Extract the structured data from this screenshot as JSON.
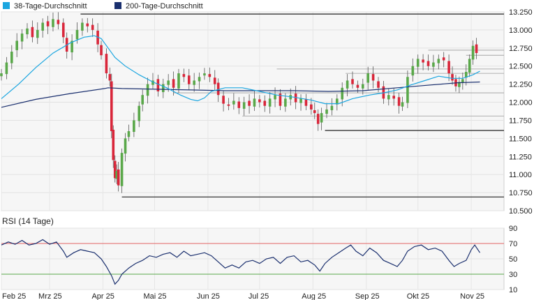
{
  "chart_data": [
    {
      "type": "candlestick",
      "legend": [
        {
          "label": "38-Tage-Durchschnitt",
          "color": "#1ba6e0"
        },
        {
          "label": "200-Tage-Durchschnitt",
          "color": "#1a2f6e"
        }
      ],
      "colors": {
        "up": "#5aa84a",
        "down": "#d9263a",
        "wick": "#555555",
        "ma38": "#1ba6e0",
        "ma200": "#1a2f6e",
        "level": "#222222"
      },
      "ylim": [
        10.5,
        13.25
      ],
      "yticks": [
        "13.250",
        "13.000",
        "12.750",
        "12.500",
        "12.250",
        "12.000",
        "11.750",
        "11.500",
        "11.250",
        "11.000",
        "10.750",
        "10.500"
      ],
      "months": [
        "Feb 25",
        "Mrz 25",
        "Apr 25",
        "Mai 25",
        "Jun 25",
        "Jul 25",
        "Aug 25",
        "Sep 25",
        "Okt 25",
        "Nov 25"
      ],
      "month_days": [
        0,
        28,
        59,
        89,
        120,
        150,
        181,
        212,
        242,
        273
      ],
      "day_range": [
        0,
        292
      ],
      "levels": [
        {
          "value": 13.22,
          "from_day": 46,
          "to_day": 292
        },
        {
          "value": 12.72,
          "from_day": 248,
          "to_day": 292
        },
        {
          "value": 12.65,
          "from_day": 270,
          "to_day": 292
        },
        {
          "value": 12.46,
          "from_day": 160,
          "to_day": 292
        },
        {
          "value": 12.4,
          "from_day": 200,
          "to_day": 292
        },
        {
          "value": 12.13,
          "from_day": 100,
          "to_day": 292
        },
        {
          "value": 11.81,
          "from_day": 140,
          "to_day": 292
        },
        {
          "value": 11.61,
          "from_day": 188,
          "to_day": 292
        },
        {
          "value": 10.69,
          "from_day": 70,
          "to_day": 292
        }
      ],
      "closes": [
        {
          "d": 0,
          "c": 12.4
        },
        {
          "d": 3,
          "c": 12.55
        },
        {
          "d": 6,
          "c": 12.7
        },
        {
          "d": 9,
          "c": 12.85
        },
        {
          "d": 12,
          "c": 12.95
        },
        {
          "d": 15,
          "c": 13.02
        },
        {
          "d": 18,
          "c": 12.9
        },
        {
          "d": 21,
          "c": 13.0
        },
        {
          "d": 24,
          "c": 13.1
        },
        {
          "d": 27,
          "c": 13.05
        },
        {
          "d": 30,
          "c": 13.15
        },
        {
          "d": 33,
          "c": 13.08
        },
        {
          "d": 36,
          "c": 12.9
        },
        {
          "d": 38,
          "c": 12.7
        },
        {
          "d": 41,
          "c": 12.85
        },
        {
          "d": 44,
          "c": 13.0
        },
        {
          "d": 47,
          "c": 13.1
        },
        {
          "d": 50,
          "c": 13.05
        },
        {
          "d": 53,
          "c": 13.0
        },
        {
          "d": 56,
          "c": 12.8
        },
        {
          "d": 58,
          "c": 12.65
        },
        {
          "d": 61,
          "c": 12.4
        },
        {
          "d": 63,
          "c": 12.3
        },
        {
          "d": 64,
          "c": 11.6
        },
        {
          "d": 65,
          "c": 11.2
        },
        {
          "d": 66,
          "c": 10.95
        },
        {
          "d": 67,
          "c": 11.05
        },
        {
          "d": 68,
          "c": 10.85
        },
        {
          "d": 70,
          "c": 11.3
        },
        {
          "d": 72,
          "c": 11.5
        },
        {
          "d": 74,
          "c": 11.6
        },
        {
          "d": 77,
          "c": 11.75
        },
        {
          "d": 80,
          "c": 11.95
        },
        {
          "d": 82,
          "c": 12.1
        },
        {
          "d": 85,
          "c": 12.25
        },
        {
          "d": 88,
          "c": 12.3
        },
        {
          "d": 91,
          "c": 12.15
        },
        {
          "d": 94,
          "c": 12.25
        },
        {
          "d": 97,
          "c": 12.3
        },
        {
          "d": 100,
          "c": 12.2
        },
        {
          "d": 103,
          "c": 12.4
        },
        {
          "d": 106,
          "c": 12.35
        },
        {
          "d": 109,
          "c": 12.25
        },
        {
          "d": 112,
          "c": 12.3
        },
        {
          "d": 115,
          "c": 12.35
        },
        {
          "d": 118,
          "c": 12.4
        },
        {
          "d": 121,
          "c": 12.35
        },
        {
          "d": 124,
          "c": 12.25
        },
        {
          "d": 126,
          "c": 12.1
        },
        {
          "d": 129,
          "c": 11.98
        },
        {
          "d": 132,
          "c": 11.95
        },
        {
          "d": 135,
          "c": 12.02
        },
        {
          "d": 138,
          "c": 11.92
        },
        {
          "d": 141,
          "c": 12.0
        },
        {
          "d": 144,
          "c": 11.95
        },
        {
          "d": 147,
          "c": 12.05
        },
        {
          "d": 150,
          "c": 12.0
        },
        {
          "d": 153,
          "c": 11.95
        },
        {
          "d": 156,
          "c": 12.05
        },
        {
          "d": 159,
          "c": 12.1
        },
        {
          "d": 162,
          "c": 11.95
        },
        {
          "d": 165,
          "c": 12.05
        },
        {
          "d": 168,
          "c": 12.1
        },
        {
          "d": 171,
          "c": 12.0
        },
        {
          "d": 174,
          "c": 12.05
        },
        {
          "d": 177,
          "c": 11.95
        },
        {
          "d": 180,
          "c": 11.9
        },
        {
          "d": 182,
          "c": 11.85
        },
        {
          "d": 184,
          "c": 11.7
        },
        {
          "d": 186,
          "c": 11.85
        },
        {
          "d": 189,
          "c": 11.9
        },
        {
          "d": 192,
          "c": 11.95
        },
        {
          "d": 195,
          "c": 12.05
        },
        {
          "d": 198,
          "c": 12.2
        },
        {
          "d": 201,
          "c": 12.3
        },
        {
          "d": 204,
          "c": 12.25
        },
        {
          "d": 207,
          "c": 12.2
        },
        {
          "d": 210,
          "c": 12.25
        },
        {
          "d": 213,
          "c": 12.4
        },
        {
          "d": 216,
          "c": 12.3
        },
        {
          "d": 219,
          "c": 12.2
        },
        {
          "d": 222,
          "c": 12.05
        },
        {
          "d": 225,
          "c": 12.1
        },
        {
          "d": 228,
          "c": 12.05
        },
        {
          "d": 231,
          "c": 11.95
        },
        {
          "d": 233,
          "c": 12.0
        },
        {
          "d": 236,
          "c": 12.35
        },
        {
          "d": 239,
          "c": 12.5
        },
        {
          "d": 242,
          "c": 12.6
        },
        {
          "d": 245,
          "c": 12.55
        },
        {
          "d": 248,
          "c": 12.5
        },
        {
          "d": 251,
          "c": 12.55
        },
        {
          "d": 254,
          "c": 12.6
        },
        {
          "d": 257,
          "c": 12.58
        },
        {
          "d": 260,
          "c": 12.4
        },
        {
          "d": 262,
          "c": 12.3
        },
        {
          "d": 264,
          "c": 12.22
        },
        {
          "d": 266,
          "c": 12.28
        },
        {
          "d": 268,
          "c": 12.32
        },
        {
          "d": 270,
          "c": 12.42
        },
        {
          "d": 272,
          "c": 12.6
        },
        {
          "d": 274,
          "c": 12.78
        },
        {
          "d": 276,
          "c": 12.68
        }
      ],
      "ma38": [
        {
          "d": 0,
          "v": 12.05
        },
        {
          "d": 10,
          "v": 12.25
        },
        {
          "d": 20,
          "v": 12.48
        },
        {
          "d": 30,
          "v": 12.68
        },
        {
          "d": 40,
          "v": 12.82
        },
        {
          "d": 48,
          "v": 12.9
        },
        {
          "d": 54,
          "v": 12.92
        },
        {
          "d": 58,
          "v": 12.88
        },
        {
          "d": 62,
          "v": 12.75
        },
        {
          "d": 66,
          "v": 12.62
        },
        {
          "d": 72,
          "v": 12.5
        },
        {
          "d": 80,
          "v": 12.38
        },
        {
          "d": 88,
          "v": 12.28
        },
        {
          "d": 96,
          "v": 12.2
        },
        {
          "d": 104,
          "v": 12.1
        },
        {
          "d": 110,
          "v": 12.04
        },
        {
          "d": 114,
          "v": 12.02
        },
        {
          "d": 118,
          "v": 12.06
        },
        {
          "d": 122,
          "v": 12.15
        },
        {
          "d": 130,
          "v": 12.2
        },
        {
          "d": 140,
          "v": 12.2
        },
        {
          "d": 150,
          "v": 12.15
        },
        {
          "d": 160,
          "v": 12.1
        },
        {
          "d": 170,
          "v": 12.07
        },
        {
          "d": 180,
          "v": 12.03
        },
        {
          "d": 188,
          "v": 11.98
        },
        {
          "d": 196,
          "v": 11.98
        },
        {
          "d": 204,
          "v": 12.05
        },
        {
          "d": 214,
          "v": 12.1
        },
        {
          "d": 222,
          "v": 12.13
        },
        {
          "d": 230,
          "v": 12.17
        },
        {
          "d": 238,
          "v": 12.24
        },
        {
          "d": 246,
          "v": 12.3
        },
        {
          "d": 254,
          "v": 12.36
        },
        {
          "d": 262,
          "v": 12.33
        },
        {
          "d": 268,
          "v": 12.33
        },
        {
          "d": 274,
          "v": 12.38
        },
        {
          "d": 278,
          "v": 12.43
        }
      ],
      "ma200": [
        {
          "d": 0,
          "v": 11.93
        },
        {
          "d": 20,
          "v": 12.04
        },
        {
          "d": 40,
          "v": 12.12
        },
        {
          "d": 60,
          "v": 12.19
        },
        {
          "d": 62,
          "v": 12.2
        },
        {
          "d": 70,
          "v": 12.19
        },
        {
          "d": 90,
          "v": 12.18
        },
        {
          "d": 110,
          "v": 12.17
        },
        {
          "d": 130,
          "v": 12.16
        },
        {
          "d": 150,
          "v": 12.16
        },
        {
          "d": 170,
          "v": 12.16
        },
        {
          "d": 190,
          "v": 12.15
        },
        {
          "d": 210,
          "v": 12.16
        },
        {
          "d": 230,
          "v": 12.2
        },
        {
          "d": 250,
          "v": 12.24
        },
        {
          "d": 265,
          "v": 12.27
        },
        {
          "d": 278,
          "v": 12.28
        }
      ]
    },
    {
      "type": "line",
      "title": "RSI (14 Tage)",
      "ylim": [
        10,
        90
      ],
      "yticks": [
        "90",
        "70",
        "50",
        "30",
        "10"
      ],
      "bands": [
        {
          "value": 70,
          "color": "#e36464"
        },
        {
          "value": 30,
          "color": "#5aa84a"
        }
      ],
      "line_color": "#1a2f6e",
      "points": [
        {
          "d": 0,
          "v": 68
        },
        {
          "d": 4,
          "v": 72
        },
        {
          "d": 8,
          "v": 69
        },
        {
          "d": 12,
          "v": 74
        },
        {
          "d": 16,
          "v": 68
        },
        {
          "d": 20,
          "v": 70
        },
        {
          "d": 24,
          "v": 75
        },
        {
          "d": 28,
          "v": 69
        },
        {
          "d": 32,
          "v": 72
        },
        {
          "d": 36,
          "v": 60
        },
        {
          "d": 38,
          "v": 52
        },
        {
          "d": 42,
          "v": 58
        },
        {
          "d": 46,
          "v": 62
        },
        {
          "d": 50,
          "v": 60
        },
        {
          "d": 54,
          "v": 58
        },
        {
          "d": 58,
          "v": 50
        },
        {
          "d": 61,
          "v": 40
        },
        {
          "d": 64,
          "v": 28
        },
        {
          "d": 66,
          "v": 17
        },
        {
          "d": 68,
          "v": 22
        },
        {
          "d": 70,
          "v": 30
        },
        {
          "d": 74,
          "v": 38
        },
        {
          "d": 78,
          "v": 44
        },
        {
          "d": 82,
          "v": 48
        },
        {
          "d": 86,
          "v": 54
        },
        {
          "d": 90,
          "v": 52
        },
        {
          "d": 94,
          "v": 56
        },
        {
          "d": 98,
          "v": 58
        },
        {
          "d": 102,
          "v": 52
        },
        {
          "d": 106,
          "v": 60
        },
        {
          "d": 110,
          "v": 54
        },
        {
          "d": 114,
          "v": 56
        },
        {
          "d": 118,
          "v": 58
        },
        {
          "d": 122,
          "v": 54
        },
        {
          "d": 126,
          "v": 46
        },
        {
          "d": 130,
          "v": 38
        },
        {
          "d": 134,
          "v": 42
        },
        {
          "d": 138,
          "v": 38
        },
        {
          "d": 142,
          "v": 46
        },
        {
          "d": 146,
          "v": 48
        },
        {
          "d": 150,
          "v": 44
        },
        {
          "d": 154,
          "v": 50
        },
        {
          "d": 158,
          "v": 52
        },
        {
          "d": 162,
          "v": 44
        },
        {
          "d": 166,
          "v": 52
        },
        {
          "d": 170,
          "v": 54
        },
        {
          "d": 174,
          "v": 46
        },
        {
          "d": 178,
          "v": 48
        },
        {
          "d": 182,
          "v": 42
        },
        {
          "d": 185,
          "v": 34
        },
        {
          "d": 188,
          "v": 44
        },
        {
          "d": 192,
          "v": 52
        },
        {
          "d": 196,
          "v": 58
        },
        {
          "d": 200,
          "v": 64
        },
        {
          "d": 203,
          "v": 68
        },
        {
          "d": 206,
          "v": 60
        },
        {
          "d": 210,
          "v": 54
        },
        {
          "d": 214,
          "v": 64
        },
        {
          "d": 218,
          "v": 58
        },
        {
          "d": 222,
          "v": 48
        },
        {
          "d": 226,
          "v": 44
        },
        {
          "d": 230,
          "v": 40
        },
        {
          "d": 233,
          "v": 48
        },
        {
          "d": 236,
          "v": 60
        },
        {
          "d": 240,
          "v": 66
        },
        {
          "d": 244,
          "v": 68
        },
        {
          "d": 248,
          "v": 62
        },
        {
          "d": 252,
          "v": 64
        },
        {
          "d": 256,
          "v": 60
        },
        {
          "d": 260,
          "v": 48
        },
        {
          "d": 263,
          "v": 40
        },
        {
          "d": 266,
          "v": 44
        },
        {
          "d": 270,
          "v": 48
        },
        {
          "d": 273,
          "v": 62
        },
        {
          "d": 275,
          "v": 68
        },
        {
          "d": 278,
          "v": 58
        }
      ],
      "months": [
        "Feb 25",
        "Mrz 25",
        "Apr 25",
        "Mai 25",
        "Jun 25",
        "Jul 25",
        "Aug 25",
        "Sep 25",
        "Okt 25",
        "Nov 25"
      ]
    }
  ]
}
